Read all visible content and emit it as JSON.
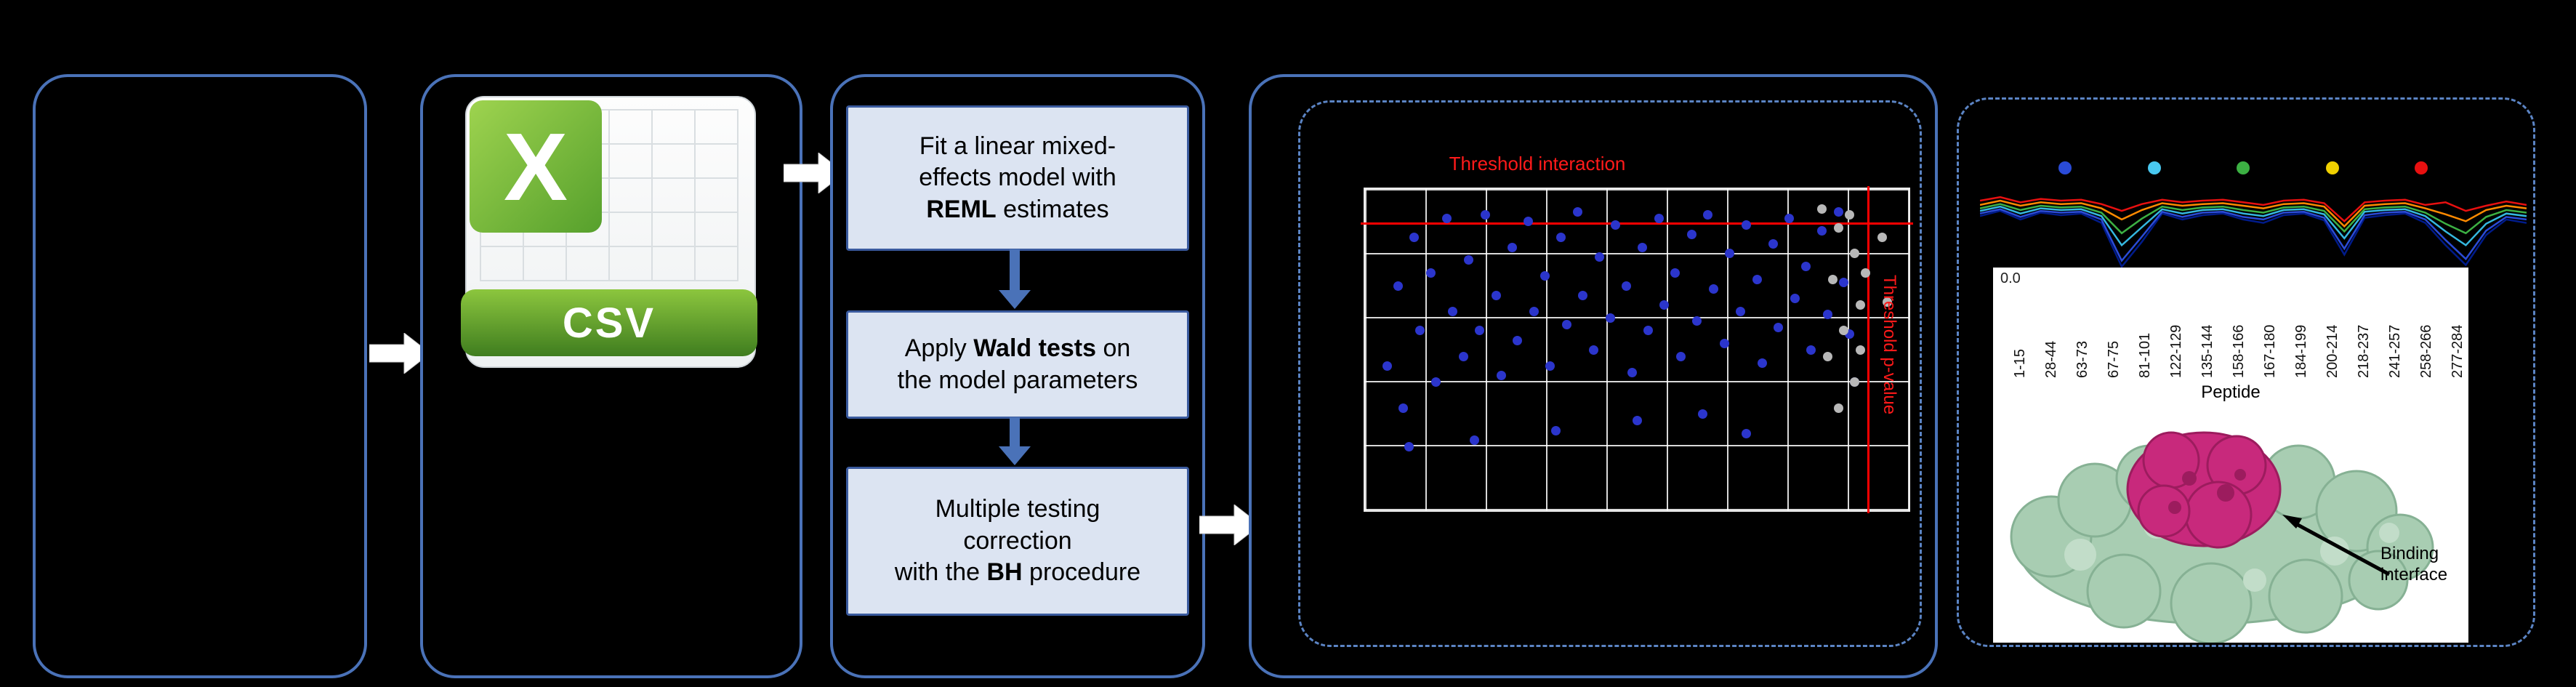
{
  "figure": {
    "csv": {
      "letter": "X",
      "label": "CSV"
    },
    "workflow_boxes": [
      [
        [
          {
            "t": "Fit a linear mixed-"
          }
        ],
        [
          {
            "t": "effects model with"
          }
        ],
        [
          {
            "t": "REML",
            "b": true
          },
          {
            "t": " estimates"
          }
        ]
      ],
      [
        [
          {
            "t": "Apply "
          },
          {
            "t": "Wald tests",
            "b": true
          },
          {
            "t": " on"
          }
        ],
        [
          {
            "t": "the model parameters"
          }
        ]
      ],
      [
        [
          {
            "t": "Multiple testing"
          }
        ],
        [
          {
            "t": "correction"
          }
        ],
        [
          {
            "t": "with the ",
            "b": false
          },
          {
            "t": "BH",
            "b": true
          },
          {
            "t": " procedure"
          }
        ]
      ]
    ],
    "volcano": {
      "title": "Threshold interaction",
      "side_label": "Threshold p-value",
      "colors": {
        "significant": "#2b35cc",
        "nonsignificant": "#b8b8b8",
        "threshold": "#ff0000"
      },
      "blue_dots": [
        [
          4,
          55
        ],
        [
          6,
          30
        ],
        [
          7,
          68
        ],
        [
          9,
          15
        ],
        [
          10,
          44
        ],
        [
          12,
          26
        ],
        [
          13,
          60
        ],
        [
          15,
          9
        ],
        [
          16,
          38
        ],
        [
          18,
          52
        ],
        [
          19,
          22
        ],
        [
          21,
          44
        ],
        [
          22,
          8
        ],
        [
          24,
          33
        ],
        [
          25,
          58
        ],
        [
          27,
          18
        ],
        [
          28,
          47
        ],
        [
          30,
          10
        ],
        [
          31,
          38
        ],
        [
          33,
          27
        ],
        [
          34,
          55
        ],
        [
          36,
          15
        ],
        [
          37,
          42
        ],
        [
          39,
          7
        ],
        [
          40,
          33
        ],
        [
          42,
          50
        ],
        [
          43,
          21
        ],
        [
          45,
          40
        ],
        [
          46,
          11
        ],
        [
          48,
          30
        ],
        [
          49,
          57
        ],
        [
          51,
          18
        ],
        [
          52,
          44
        ],
        [
          54,
          9
        ],
        [
          55,
          36
        ],
        [
          57,
          26
        ],
        [
          58,
          52
        ],
        [
          60,
          14
        ],
        [
          61,
          41
        ],
        [
          63,
          8
        ],
        [
          64,
          31
        ],
        [
          66,
          48
        ],
        [
          67,
          20
        ],
        [
          69,
          38
        ],
        [
          70,
          11
        ],
        [
          72,
          28
        ],
        [
          73,
          54
        ],
        [
          75,
          17
        ],
        [
          76,
          43
        ],
        [
          78,
          9
        ],
        [
          79,
          34
        ],
        [
          81,
          24
        ],
        [
          82,
          50
        ],
        [
          84,
          13
        ],
        [
          85,
          39
        ],
        [
          87,
          7
        ],
        [
          88,
          29
        ],
        [
          89,
          45
        ],
        [
          62,
          70
        ],
        [
          35,
          75
        ],
        [
          20,
          78
        ],
        [
          50,
          72
        ],
        [
          8,
          80
        ],
        [
          70,
          76
        ],
        [
          90,
          60
        ]
      ],
      "gray_dots": [
        [
          84,
          6
        ],
        [
          87,
          12
        ],
        [
          90,
          20
        ],
        [
          86,
          28
        ],
        [
          91,
          36
        ],
        [
          88,
          44
        ],
        [
          85,
          52
        ],
        [
          90,
          60
        ],
        [
          87,
          68
        ],
        [
          92,
          26
        ],
        [
          89,
          8
        ],
        [
          91,
          50
        ],
        [
          95,
          15
        ],
        [
          96,
          35
        ]
      ]
    },
    "peptide_plot": {
      "timepoint_colors": [
        "#2a4bd7",
        "#49c8f0",
        "#3cb043",
        "#f0d000",
        "#e81010"
      ],
      "series": [
        {
          "color": "#001b8a",
          "values": [
            40,
            34,
            44,
            36,
            39,
            37,
            48,
            99,
            70,
            37,
            44,
            39,
            37,
            44,
            48,
            39,
            37,
            45,
            85,
            42,
            39,
            37,
            48,
            74,
            97,
            62,
            44,
            48
          ]
        },
        {
          "color": "#2a4bd7",
          "values": [
            37,
            32,
            41,
            34,
            36,
            35,
            44,
            92,
            64,
            35,
            41,
            36,
            35,
            41,
            44,
            36,
            35,
            42,
            78,
            39,
            36,
            35,
            44,
            68,
            90,
            57,
            41,
            44
          ]
        },
        {
          "color": "#35b8e0",
          "values": [
            34,
            29,
            37,
            31,
            33,
            32,
            40,
            74,
            53,
            32,
            37,
            33,
            32,
            37,
            40,
            33,
            32,
            38,
            66,
            35,
            33,
            32,
            40,
            58,
            74,
            49,
            37,
            40
          ]
        },
        {
          "color": "#3cb043",
          "values": [
            31,
            26,
            33,
            28,
            30,
            29,
            36,
            60,
            43,
            29,
            33,
            30,
            29,
            33,
            36,
            30,
            29,
            34,
            58,
            32,
            30,
            29,
            36,
            49,
            60,
            41,
            33,
            36
          ]
        },
        {
          "color": "#ff8a00",
          "values": [
            27,
            22,
            28,
            24,
            26,
            25,
            31,
            44,
            33,
            25,
            28,
            26,
            25,
            28,
            31,
            26,
            25,
            29,
            52,
            28,
            26,
            25,
            31,
            38,
            46,
            33,
            28,
            31
          ]
        },
        {
          "color": "#e81010",
          "values": [
            22,
            18,
            24,
            20,
            22,
            21,
            26,
            34,
            26,
            21,
            24,
            22,
            21,
            24,
            27,
            22,
            21,
            25,
            46,
            24,
            22,
            21,
            27,
            24,
            34,
            28,
            23,
            27
          ]
        }
      ],
      "ytick": "0.0",
      "peptide_labels": [
        "1-15",
        "28-44",
        "63-73",
        "67-75",
        "81-101",
        "122-129",
        "135-144",
        "158-166",
        "167-180",
        "184-199",
        "200-214",
        "218-237",
        "241-257",
        "258-266",
        "277-284"
      ],
      "xlabel": "Peptide",
      "annotation": [
        "Binding",
        "interface"
      ]
    }
  }
}
